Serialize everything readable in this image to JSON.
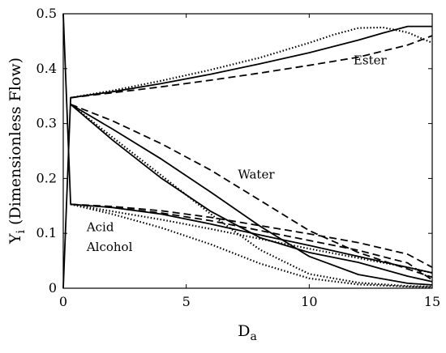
{
  "chart_data": {
    "type": "line",
    "title": "",
    "xlabel": "D",
    "xlabel_sub": "a",
    "ylabel": "Y",
    "ylabel_sub": "i",
    "ylabel_rest": " (Dimensionless Flow)",
    "xlim": [
      0,
      15
    ],
    "ylim": [
      0,
      0.5
    ],
    "xticks": [
      "0",
      "5",
      "10",
      "15"
    ],
    "yticks": [
      "0",
      "0.1",
      "0.2",
      "0.3",
      "0.4",
      "0.5"
    ],
    "grid": false,
    "legend": "none",
    "annotations": [
      {
        "text": "Ester",
        "x": 11.8,
        "y": 0.408
      },
      {
        "text": "Water",
        "x": 7.1,
        "y": 0.2
      },
      {
        "text": "Acid",
        "x": 0.95,
        "y": 0.104
      },
      {
        "text": "Alcohol",
        "x": 0.95,
        "y": 0.068
      }
    ],
    "series": [
      {
        "group": "Ester",
        "style": "solid",
        "x": [
          0,
          0.3,
          2,
          4,
          6,
          8,
          10,
          12,
          13,
          14,
          15
        ],
        "y": [
          0,
          0.347,
          0.358,
          0.373,
          0.39,
          0.409,
          0.429,
          0.452,
          0.465,
          0.477,
          0.477
        ]
      },
      {
        "group": "Ester",
        "style": "dashed",
        "x": [
          0.3,
          2,
          4,
          6,
          8,
          10,
          12,
          14,
          15
        ],
        "y": [
          0.347,
          0.356,
          0.367,
          0.379,
          0.392,
          0.406,
          0.421,
          0.443,
          0.46
        ]
      },
      {
        "group": "Ester",
        "style": "dotted",
        "x": [
          0.3,
          2,
          4,
          6,
          8,
          10,
          11,
          12,
          13,
          14,
          15
        ],
        "y": [
          0.347,
          0.36,
          0.378,
          0.398,
          0.42,
          0.447,
          0.462,
          0.474,
          0.475,
          0.466,
          0.447
        ]
      },
      {
        "group": "Water",
        "style": "solid",
        "x": [
          0.3,
          2,
          4,
          6,
          8,
          10,
          12,
          14,
          15
        ],
        "y": [
          0.335,
          0.29,
          0.235,
          0.175,
          0.113,
          0.058,
          0.025,
          0.009,
          0.006
        ]
      },
      {
        "group": "Water",
        "style": "dashed",
        "x": [
          0.3,
          2,
          4,
          6,
          8,
          10,
          12,
          14,
          15
        ],
        "y": [
          0.335,
          0.305,
          0.263,
          0.215,
          0.16,
          0.105,
          0.065,
          0.035,
          0.02
        ]
      },
      {
        "group": "Water",
        "style": "dotted",
        "x": [
          0.3,
          2,
          4,
          6,
          8,
          10,
          12,
          14,
          15
        ],
        "y": [
          0.335,
          0.275,
          0.205,
          0.135,
          0.07,
          0.026,
          0.01,
          0.004,
          0.003
        ]
      },
      {
        "group": "Acid/Alcohol",
        "style": "solid",
        "x": [
          0,
          0.3,
          2,
          4,
          6,
          8,
          10,
          12,
          14,
          15
        ],
        "y": [
          0.5,
          0.153,
          0.147,
          0.135,
          0.117,
          0.097,
          0.078,
          0.058,
          0.038,
          0.028
        ]
      },
      {
        "group": "Acid/Alcohol",
        "style": "solid",
        "x": [
          0.3,
          2,
          4,
          6,
          8,
          10,
          12,
          14,
          15
        ],
        "y": [
          0.335,
          0.27,
          0.2,
          0.14,
          0.092,
          0.065,
          0.047,
          0.022,
          0.012
        ]
      },
      {
        "group": "Acid/Alcohol",
        "style": "dashed",
        "x": [
          0.3,
          2,
          4,
          6,
          8,
          10,
          12,
          14,
          15
        ],
        "y": [
          0.153,
          0.149,
          0.141,
          0.129,
          0.114,
          0.099,
          0.083,
          0.062,
          0.038
        ]
      },
      {
        "group": "Acid/Alcohol",
        "style": "dashed",
        "x": [
          0.3,
          2,
          4,
          6,
          8,
          10,
          12,
          14,
          15
        ],
        "y": [
          0.153,
          0.147,
          0.137,
          0.123,
          0.105,
          0.087,
          0.069,
          0.046,
          0.015
        ]
      },
      {
        "group": "Acid/Alcohol",
        "style": "dotted",
        "x": [
          0.3,
          2,
          4,
          6,
          8,
          10,
          12,
          14,
          15
        ],
        "y": [
          0.153,
          0.14,
          0.125,
          0.108,
          0.09,
          0.072,
          0.055,
          0.038,
          0.028
        ]
      },
      {
        "group": "Acid/Alcohol",
        "style": "dotted",
        "x": [
          0.3,
          2,
          4,
          6,
          8,
          10,
          12,
          14,
          15
        ],
        "y": [
          0.153,
          0.135,
          0.11,
          0.08,
          0.045,
          0.018,
          0.007,
          0.003,
          0.002
        ]
      }
    ]
  }
}
